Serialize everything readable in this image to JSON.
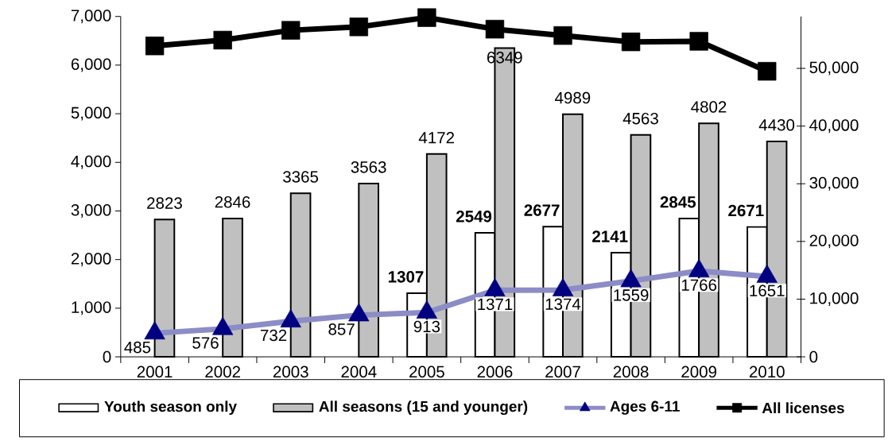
{
  "chart_data": {
    "type": "bar",
    "categories": [
      "2001",
      "2002",
      "2003",
      "2004",
      "2005",
      "2006",
      "2007",
      "2008",
      "2009",
      "2010"
    ],
    "series": [
      {
        "name": "Youth season only",
        "type": "bar",
        "color": "#ffffff",
        "data_labels": true,
        "values": [
          null,
          null,
          null,
          null,
          1307,
          2549,
          2677,
          2141,
          2845,
          2671
        ]
      },
      {
        "name": "All seasons (15 and younger)",
        "type": "bar",
        "color": "#c0c0c0",
        "data_labels": true,
        "values": [
          2823,
          2846,
          3365,
          3563,
          4172,
          6349,
          4989,
          4563,
          4802,
          4430
        ]
      },
      {
        "name": "Ages 6-11",
        "type": "line",
        "color": "#000080",
        "marker": "triangle",
        "data_labels": true,
        "values": [
          485,
          576,
          732,
          857,
          913,
          1371,
          1374,
          1559,
          1766,
          1651
        ]
      },
      {
        "name": "All licenses",
        "type": "line",
        "color": "#000000",
        "marker": "square",
        "axis": "y2",
        "values": [
          53900,
          54900,
          56600,
          57200,
          58800,
          56800,
          55700,
          54600,
          54700,
          49500
        ]
      }
    ],
    "ylim": [
      0,
      7000
    ],
    "yticks": [
      0,
      {
        "value": 1000,
        "label": "1,000"
      },
      {
        "value": 2000,
        "label": "2,000"
      },
      {
        "value": 3000,
        "label": "3,000"
      },
      {
        "value": 4000,
        "label": "4,000"
      },
      {
        "value": 5000,
        "label": "5,000"
      },
      {
        "value": 6000,
        "label": "6,000"
      },
      {
        "value": 7000,
        "label": "7,000"
      }
    ],
    "y2lim": [
      0,
      59000
    ],
    "y2ticks": [
      0,
      {
        "value": 10000,
        "label": "10,000"
      },
      {
        "value": 20000,
        "label": "20,000"
      },
      {
        "value": 30000,
        "label": "30,000"
      },
      {
        "value": 40000,
        "label": "40,000"
      },
      {
        "value": 50000,
        "label": "50,000"
      }
    ],
    "legend": "bottom"
  }
}
